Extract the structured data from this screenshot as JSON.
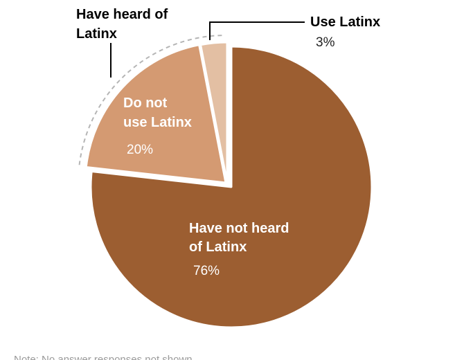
{
  "chart_data": {
    "type": "pie",
    "slices": [
      {
        "label_lines": [
          "Have not heard",
          "of Latinx"
        ],
        "value": 76,
        "value_label": "76%",
        "color": "#9c5e31"
      },
      {
        "label_lines": [
          "Do not",
          "use Latinx"
        ],
        "value": 20,
        "value_label": "20%",
        "color": "#d49a72"
      },
      {
        "label_lines": [
          "Use Latinx"
        ],
        "value": 3,
        "value_label": "3%",
        "color": "#e3bfa3"
      }
    ],
    "group_annotation": {
      "label_lines": [
        "Have heard of",
        "Latinx"
      ]
    },
    "note": "Note: No answer responses not shown."
  }
}
